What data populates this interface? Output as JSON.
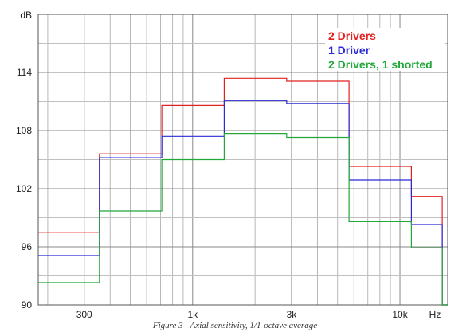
{
  "caption": "Figure 3 - Axial sensitivity, 1/1-octave average",
  "chart_data": {
    "type": "line",
    "step": true,
    "ylabel": "dB",
    "xlabel": "Hz",
    "x_scale": "log",
    "xlim": [
      180,
      17000
    ],
    "ylim": [
      90,
      120
    ],
    "y_ticks": [
      90,
      96,
      102,
      108,
      114
    ],
    "x_ticks": [
      {
        "value": 300,
        "label": "300"
      },
      {
        "value": 1000,
        "label": "1k"
      },
      {
        "value": 3000,
        "label": "3k"
      },
      {
        "value": 10000,
        "label": "10k"
      }
    ],
    "x_edges": [
      180,
      355,
      710,
      1420,
      2840,
      5680,
      11360,
      16000,
      17000
    ],
    "grid": true,
    "legend": "top-right",
    "series": [
      {
        "name": "2 Drivers",
        "color": "#e32020",
        "values": [
          97.5,
          105.6,
          110.6,
          113.4,
          113.1,
          104.3,
          101.2,
          90.0
        ]
      },
      {
        "name": "1 Driver",
        "color": "#2a2ad8",
        "values": [
          95.1,
          105.2,
          107.4,
          111.1,
          110.8,
          102.9,
          98.3,
          90.0
        ]
      },
      {
        "name": "2 Drivers, 1 shorted",
        "color": "#22a83a",
        "values": [
          92.3,
          99.7,
          105.0,
          107.7,
          107.3,
          98.6,
          95.9,
          90.0
        ]
      }
    ]
  }
}
